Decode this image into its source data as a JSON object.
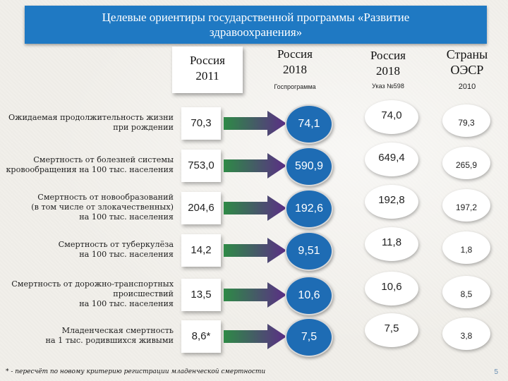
{
  "title": {
    "line1": "Целевые ориентиры государственной программы «Развитие",
    "line2": "здравоохранения»"
  },
  "columns": {
    "russia2011": {
      "line1": "Россия",
      "line2": "2011"
    },
    "russia2018_program": {
      "line1": "Россия",
      "line2": "2018",
      "sub": "Госпрограмма"
    },
    "russia2018_decree": {
      "line1": "Россия",
      "line2": "2018",
      "sub": "Указ №598"
    },
    "oecd": {
      "line1": "Страны",
      "line2": "ОЭСР",
      "sub": "2010"
    }
  },
  "rows": [
    {
      "label_lines": [
        "Ожидаемая продолжительность жизни",
        "при рождении"
      ],
      "v2011": "70,3",
      "v2018p": "74,1",
      "v2018d": "74,0",
      "voecd": "79,3"
    },
    {
      "label_lines": [
        "Смертность от болезней системы",
        "кровообращения на 100 тыс. населения"
      ],
      "v2011": "753,0",
      "v2018p": "590,9",
      "v2018d": "649,4",
      "voecd": "265,9"
    },
    {
      "label_lines": [
        "Смертность от новообразований",
        "(в том числе от злокачественных)",
        "на 100 тыс. населения"
      ],
      "v2011": "204,6",
      "v2018p": "192,6",
      "v2018d": "192,8",
      "voecd": "197,2"
    },
    {
      "label_lines": [
        "Смертность от туберкулёза",
        "на 100 тыс. населения"
      ],
      "v2011": "14,2",
      "v2018p": "9,51",
      "v2018d": "11,8",
      "voecd": "1,8"
    },
    {
      "label_lines": [
        "Смертность от дорожно-транспортных",
        "происшествий",
        "на 100 тыс. населения"
      ],
      "v2011": "13,5",
      "v2018p": "10,6",
      "v2018d": "10,6",
      "voecd": "8,5"
    },
    {
      "label_lines": [
        "Младенческая смертность",
        "на 1 тыс. родившихся живыми"
      ],
      "v2011": "8,6*",
      "v2018p": "7,5",
      "v2018d": "7,5",
      "voecd": "3,8"
    }
  ],
  "footnote": "* - пересчёт по новому критерию регистрации младенческой смертности",
  "page_number": "5",
  "colors": {
    "title_bg": "#1f79c3",
    "circle_blue": "#1e6cb4",
    "arrow_green": "#2e8a46",
    "arrow_purple": "#5b2d86"
  }
}
